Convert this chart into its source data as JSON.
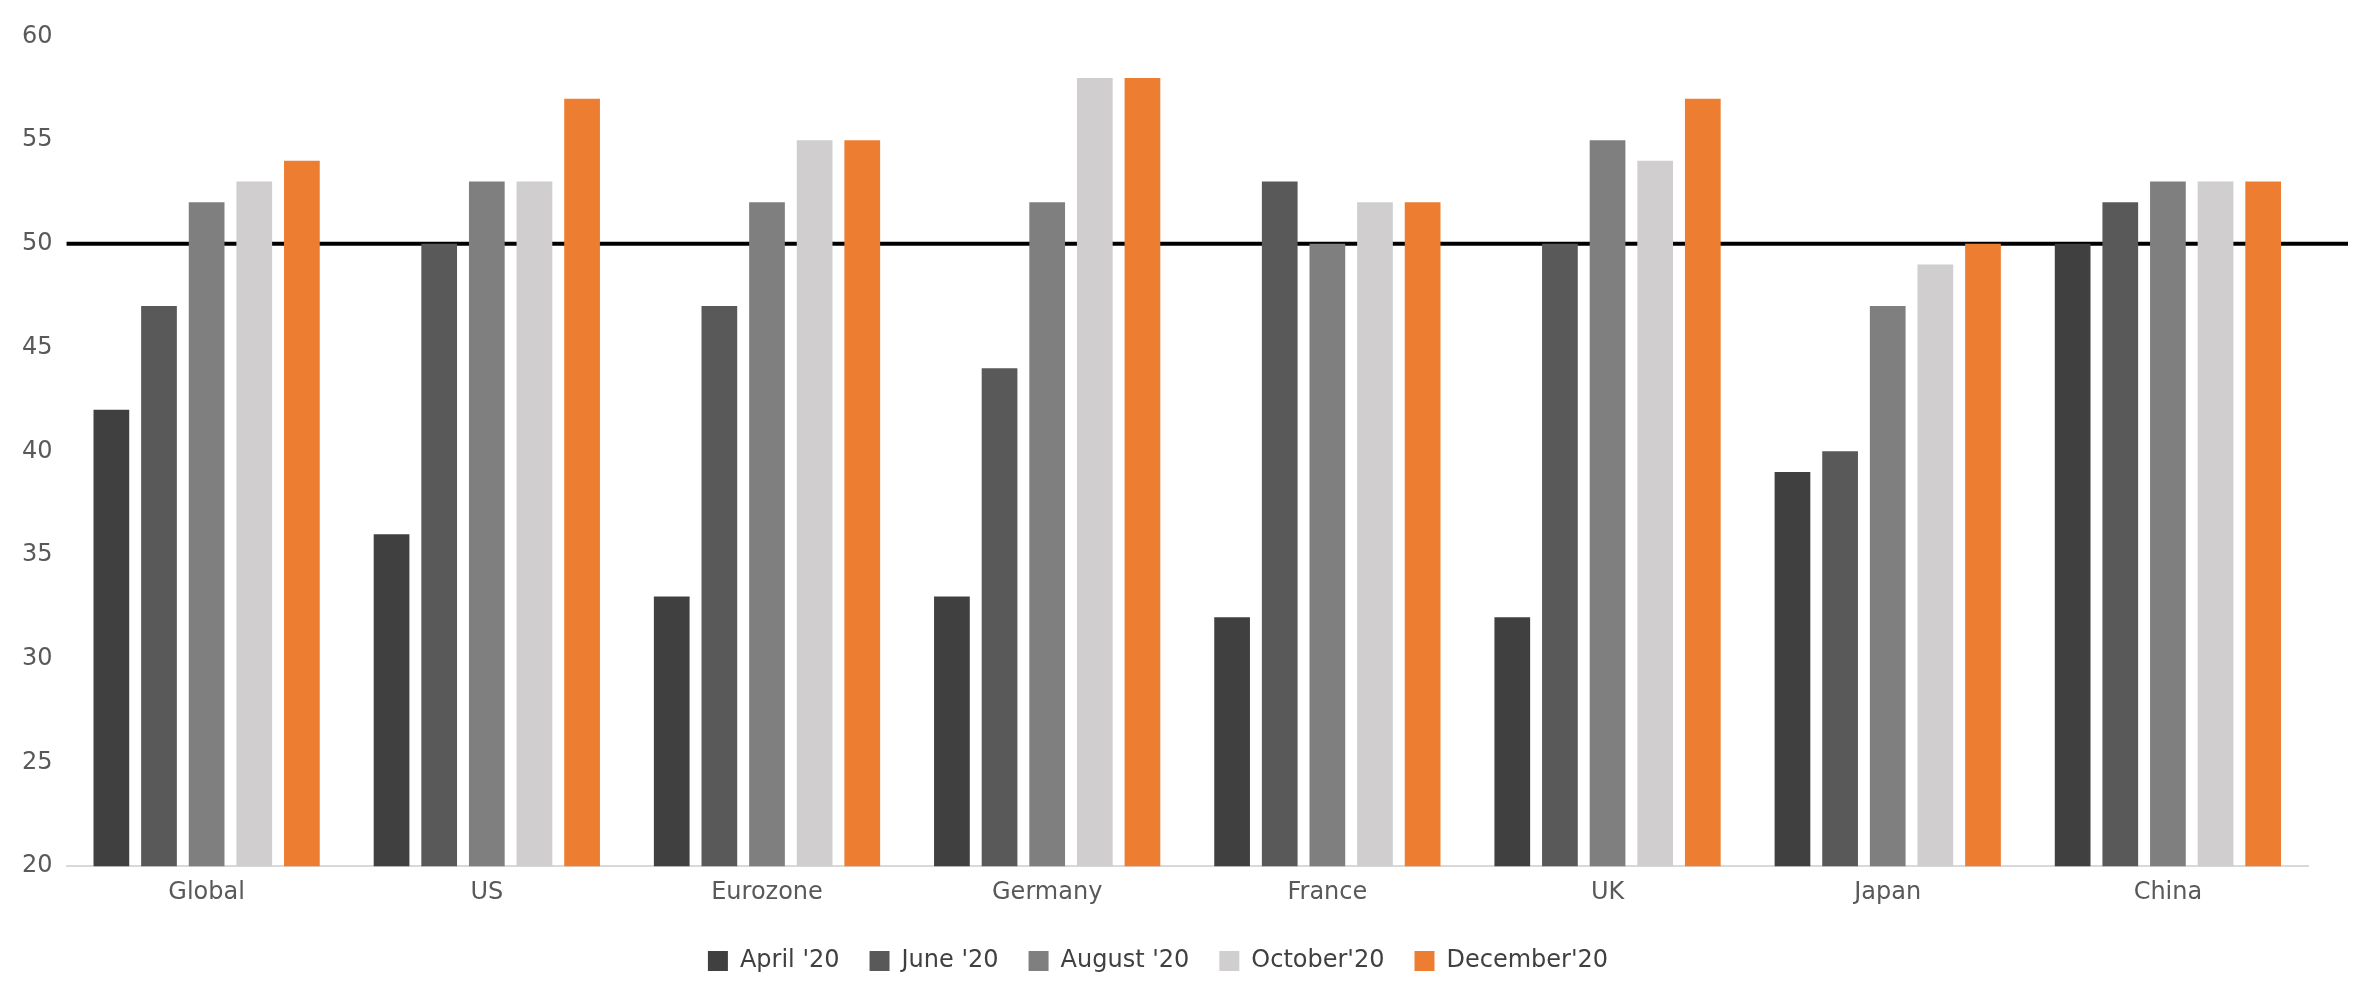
{
  "chart_data": {
    "type": "bar",
    "categories": [
      "Global",
      "US",
      "Eurozone",
      "Germany",
      "France",
      "UK",
      "Japan",
      "China"
    ],
    "series": [
      {
        "name": "April '20",
        "color": "#404040",
        "values": [
          42,
          36,
          33,
          33,
          32,
          32,
          39,
          50
        ]
      },
      {
        "name": "June '20",
        "color": "#595959",
        "values": [
          47,
          50,
          47,
          44,
          53,
          50,
          40,
          52
        ]
      },
      {
        "name": "August '20",
        "color": "#7f7f7f",
        "values": [
          52,
          53,
          52,
          52,
          50,
          55,
          47,
          53
        ]
      },
      {
        "name": "October'20",
        "color": "#d0cece",
        "values": [
          53,
          53,
          55,
          58,
          52,
          54,
          49,
          53
        ]
      },
      {
        "name": "December'20",
        "color": "#ed7d31",
        "values": [
          54,
          57,
          55,
          58,
          52,
          57,
          50,
          53
        ]
      }
    ],
    "ylim": [
      20,
      60
    ],
    "yticks": [
      20,
      25,
      30,
      35,
      40,
      45,
      50,
      55,
      60
    ],
    "grid": false,
    "legend": "bottom",
    "ref_lines": [
      {
        "axis": "y",
        "value": 50,
        "color": "#000000"
      }
    ]
  }
}
